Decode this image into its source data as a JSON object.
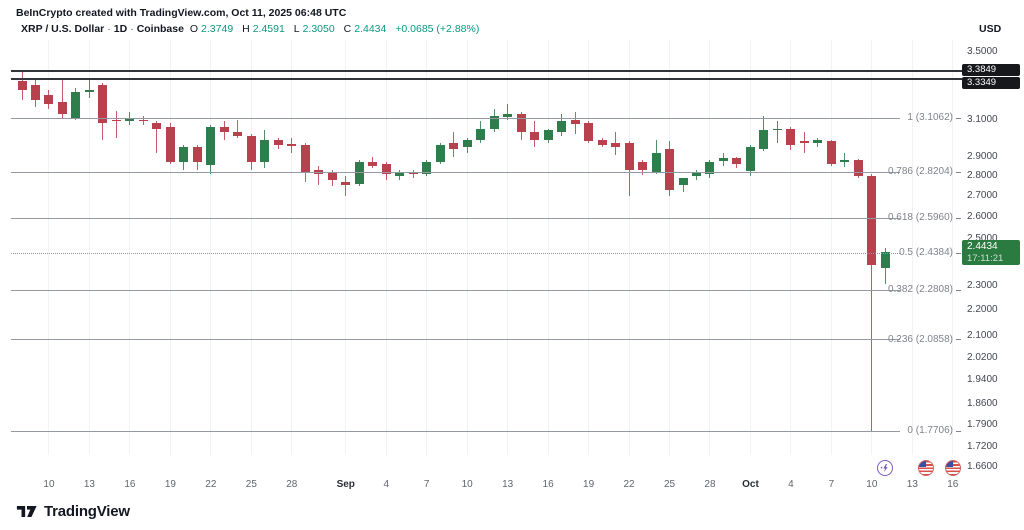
{
  "header": {
    "attribution": "BeInCrypto created with TradingView.com, Oct 11, 2025 06:48 UTC"
  },
  "legend": {
    "symbol": "XRP / U.S. Dollar",
    "separator": "·",
    "interval": "1D",
    "exchange": "Coinbase",
    "o_label": "O",
    "o_value": "2.3749",
    "h_label": "H",
    "h_value": "2.4591",
    "l_label": "L",
    "l_value": "2.3050",
    "c_label": "C",
    "c_value": "2.4434",
    "change": "+0.0685 (+2.88%)"
  },
  "axis": {
    "currency": "USD"
  },
  "branding": {
    "name": "TradingView"
  },
  "colors": {
    "up": "#2e7d4c",
    "down": "#b8414e",
    "ohlc_value_text": "#089981",
    "fib_line": "#9599a3",
    "fib_text": "#80838d",
    "black_line": "#33353c",
    "grid": "#f1f2f5",
    "axis_text": "#434651",
    "time_text": "#61646d",
    "time_text_bold": "#2a2d35",
    "label_box_dark": "#17181c",
    "label_box_green": "#2a7b3f",
    "event_purple": "#7d5bbe",
    "flag_red": "#d8504d",
    "flag_blue": "#3c4fa0",
    "text_dark": "#131722"
  },
  "chart_data": {
    "type": "candlestick",
    "symbol": "XRP / U.S. Dollar",
    "exchange": "Coinbase",
    "interval": "1D",
    "y_scale": "log",
    "ohlc_display": {
      "open": "2.3749",
      "high": "2.4591",
      "low": "2.3050",
      "close": "2.4434",
      "change": "+0.0685 (+2.88%)"
    },
    "price_ticks": [
      {
        "label": "3.5000",
        "value": 3.5
      },
      {
        "label": "3.3000",
        "value": 3.3
      },
      {
        "label": "3.1000",
        "value": 3.1
      },
      {
        "label": "2.9000",
        "value": 2.9
      },
      {
        "label": "2.8000",
        "value": 2.8
      },
      {
        "label": "2.7000",
        "value": 2.7
      },
      {
        "label": "2.6000",
        "value": 2.6
      },
      {
        "label": "2.5000",
        "value": 2.5
      },
      {
        "label": "2.3000",
        "value": 2.3
      },
      {
        "label": "2.2000",
        "value": 2.2
      },
      {
        "label": "2.1000",
        "value": 2.1
      },
      {
        "label": "2.0200",
        "value": 2.02
      },
      {
        "label": "1.9400",
        "value": 1.94
      },
      {
        "label": "1.8600",
        "value": 1.86
      },
      {
        "label": "1.7900",
        "value": 1.79
      },
      {
        "label": "1.7200",
        "value": 1.72
      },
      {
        "label": "1.6600",
        "value": 1.66
      }
    ],
    "time_ticks": [
      {
        "label": "10",
        "day": 2,
        "bold": false
      },
      {
        "label": "13",
        "day": 5,
        "bold": false
      },
      {
        "label": "16",
        "day": 8,
        "bold": false
      },
      {
        "label": "19",
        "day": 11,
        "bold": false
      },
      {
        "label": "22",
        "day": 14,
        "bold": false
      },
      {
        "label": "25",
        "day": 17,
        "bold": false
      },
      {
        "label": "28",
        "day": 20,
        "bold": false
      },
      {
        "label": "Sep",
        "day": 24,
        "bold": true
      },
      {
        "label": "4",
        "day": 27,
        "bold": false
      },
      {
        "label": "7",
        "day": 30,
        "bold": false
      },
      {
        "label": "10",
        "day": 33,
        "bold": false
      },
      {
        "label": "13",
        "day": 36,
        "bold": false
      },
      {
        "label": "16",
        "day": 39,
        "bold": false
      },
      {
        "label": "19",
        "day": 42,
        "bold": false
      },
      {
        "label": "22",
        "day": 45,
        "bold": false
      },
      {
        "label": "25",
        "day": 48,
        "bold": false
      },
      {
        "label": "28",
        "day": 51,
        "bold": false
      },
      {
        "label": "Oct",
        "day": 54,
        "bold": true
      },
      {
        "label": "4",
        "day": 57,
        "bold": false
      },
      {
        "label": "7",
        "day": 60,
        "bold": false
      },
      {
        "label": "10",
        "day": 63,
        "bold": false
      },
      {
        "label": "13",
        "day": 66,
        "bold": false
      },
      {
        "label": "16",
        "day": 69,
        "bold": false
      }
    ],
    "horizontal_lines": [
      {
        "price": 3.3849,
        "label": "3.3849"
      },
      {
        "price": 3.3349,
        "label": "3.3349"
      }
    ],
    "fib_levels": [
      {
        "ratio": "1",
        "price": 3.1062,
        "label": "1 (3.1062)",
        "dotted": false
      },
      {
        "ratio": "0.786",
        "price": 2.8204,
        "label": "0.786 (2.8204)",
        "dotted": false
      },
      {
        "ratio": "0.618",
        "price": 2.596,
        "label": "0.618 (2.5960)",
        "dotted": false
      },
      {
        "ratio": "0.5",
        "price": 2.4384,
        "label": "0.5 (2.4384)",
        "dotted": true
      },
      {
        "ratio": "0.382",
        "price": 2.2808,
        "label": "0.382 (2.2808)",
        "dotted": false
      },
      {
        "ratio": "0.236",
        "price": 2.0858,
        "label": "0.236 (2.0858)",
        "dotted": false
      },
      {
        "ratio": "0",
        "price": 1.7706,
        "label": "0 (1.7706)",
        "dotted": false
      }
    ],
    "last_price": {
      "value": "2.4434",
      "countdown": "17:11:21",
      "price": 2.4434
    },
    "event_markers": [
      {
        "type": "lightning",
        "name": "lightning-event-icon",
        "day": 64
      },
      {
        "type": "us-flag",
        "name": "us-flag-event-icon",
        "day": 67
      },
      {
        "type": "us-flag",
        "name": "us-flag-event-icon",
        "day": 69
      }
    ],
    "candles": [
      {
        "d": "Aug 8",
        "o": 3.32,
        "h": 3.38,
        "l": 3.21,
        "c": 3.27
      },
      {
        "d": "Aug 9",
        "o": 3.3,
        "h": 3.33,
        "l": 3.17,
        "c": 3.21
      },
      {
        "d": "Aug 10",
        "o": 3.24,
        "h": 3.27,
        "l": 3.16,
        "c": 3.19
      },
      {
        "d": "Aug 11",
        "o": 3.2,
        "h": 3.34,
        "l": 3.11,
        "c": 3.13
      },
      {
        "d": "Aug 12",
        "o": 3.11,
        "h": 3.28,
        "l": 3.1,
        "c": 3.26
      },
      {
        "d": "Aug 13",
        "o": 3.26,
        "h": 3.33,
        "l": 3.22,
        "c": 3.27
      },
      {
        "d": "Aug 14",
        "o": 3.3,
        "h": 3.31,
        "l": 2.99,
        "c": 3.08
      },
      {
        "d": "Aug 15",
        "o": 3.1,
        "h": 3.15,
        "l": 3.0,
        "c": 3.09
      },
      {
        "d": "Aug 16",
        "o": 3.09,
        "h": 3.14,
        "l": 3.07,
        "c": 3.11
      },
      {
        "d": "Aug 17",
        "o": 3.1,
        "h": 3.12,
        "l": 3.07,
        "c": 3.09
      },
      {
        "d": "Aug 18",
        "o": 3.08,
        "h": 3.09,
        "l": 2.92,
        "c": 3.05
      },
      {
        "d": "Aug 19",
        "o": 3.06,
        "h": 3.08,
        "l": 2.86,
        "c": 2.87
      },
      {
        "d": "Aug 20",
        "o": 2.87,
        "h": 2.96,
        "l": 2.83,
        "c": 2.95
      },
      {
        "d": "Aug 21",
        "o": 2.95,
        "h": 2.96,
        "l": 2.83,
        "c": 2.87
      },
      {
        "d": "Aug 22",
        "o": 2.855,
        "h": 3.07,
        "l": 2.81,
        "c": 3.06
      },
      {
        "d": "Aug 23",
        "o": 3.06,
        "h": 3.09,
        "l": 2.99,
        "c": 3.03
      },
      {
        "d": "Aug 24",
        "o": 3.03,
        "h": 3.1,
        "l": 3.0,
        "c": 3.01
      },
      {
        "d": "Aug 25",
        "o": 3.01,
        "h": 3.02,
        "l": 2.83,
        "c": 2.87
      },
      {
        "d": "Aug 26",
        "o": 2.87,
        "h": 3.04,
        "l": 2.84,
        "c": 2.99
      },
      {
        "d": "Aug 27",
        "o": 2.99,
        "h": 3.0,
        "l": 2.94,
        "c": 2.96
      },
      {
        "d": "Aug 28",
        "o": 2.965,
        "h": 3.0,
        "l": 2.92,
        "c": 2.955
      },
      {
        "d": "Aug 29",
        "o": 2.96,
        "h": 2.97,
        "l": 2.77,
        "c": 2.82
      },
      {
        "d": "Aug 30",
        "o": 2.83,
        "h": 2.85,
        "l": 2.755,
        "c": 2.81
      },
      {
        "d": "Aug 31",
        "o": 2.82,
        "h": 2.83,
        "l": 2.75,
        "c": 2.78
      },
      {
        "d": "Sep 1",
        "o": 2.77,
        "h": 2.8,
        "l": 2.7,
        "c": 2.755
      },
      {
        "d": "Sep 2",
        "o": 2.76,
        "h": 2.88,
        "l": 2.75,
        "c": 2.87
      },
      {
        "d": "Sep 3",
        "o": 2.87,
        "h": 2.9,
        "l": 2.84,
        "c": 2.85
      },
      {
        "d": "Sep 4",
        "o": 2.86,
        "h": 2.87,
        "l": 2.78,
        "c": 2.81
      },
      {
        "d": "Sep 5",
        "o": 2.8,
        "h": 2.83,
        "l": 2.78,
        "c": 2.82
      },
      {
        "d": "Sep 6",
        "o": 2.82,
        "h": 2.83,
        "l": 2.79,
        "c": 2.81
      },
      {
        "d": "Sep 7",
        "o": 2.81,
        "h": 2.88,
        "l": 2.8,
        "c": 2.87
      },
      {
        "d": "Sep 8",
        "o": 2.87,
        "h": 2.97,
        "l": 2.86,
        "c": 2.96
      },
      {
        "d": "Sep 9",
        "o": 2.97,
        "h": 3.03,
        "l": 2.9,
        "c": 2.94
      },
      {
        "d": "Sep 10",
        "o": 2.95,
        "h": 3.0,
        "l": 2.92,
        "c": 2.99
      },
      {
        "d": "Sep 11",
        "o": 2.99,
        "h": 3.09,
        "l": 2.97,
        "c": 3.05
      },
      {
        "d": "Sep 12",
        "o": 3.05,
        "h": 3.16,
        "l": 3.03,
        "c": 3.12
      },
      {
        "d": "Sep 13",
        "o": 3.115,
        "h": 3.19,
        "l": 3.1,
        "c": 3.13
      },
      {
        "d": "Sep 14",
        "o": 3.13,
        "h": 3.14,
        "l": 2.99,
        "c": 3.03
      },
      {
        "d": "Sep 15",
        "o": 3.03,
        "h": 3.09,
        "l": 2.95,
        "c": 2.99
      },
      {
        "d": "Sep 16",
        "o": 2.99,
        "h": 3.05,
        "l": 2.97,
        "c": 3.04
      },
      {
        "d": "Sep 17",
        "o": 3.03,
        "h": 3.13,
        "l": 3.01,
        "c": 3.09
      },
      {
        "d": "Sep 18",
        "o": 3.095,
        "h": 3.14,
        "l": 3.02,
        "c": 3.075
      },
      {
        "d": "Sep 19",
        "o": 3.08,
        "h": 3.09,
        "l": 2.97,
        "c": 2.985
      },
      {
        "d": "Sep 20",
        "o": 2.99,
        "h": 3.0,
        "l": 2.95,
        "c": 2.96
      },
      {
        "d": "Sep 21",
        "o": 2.97,
        "h": 3.03,
        "l": 2.91,
        "c": 2.95
      },
      {
        "d": "Sep 22",
        "o": 2.97,
        "h": 2.98,
        "l": 2.7,
        "c": 2.83
      },
      {
        "d": "Sep 23",
        "o": 2.87,
        "h": 2.88,
        "l": 2.805,
        "c": 2.83
      },
      {
        "d": "Sep 24",
        "o": 2.82,
        "h": 2.99,
        "l": 2.81,
        "c": 2.92
      },
      {
        "d": "Sep 25",
        "o": 2.94,
        "h": 2.98,
        "l": 2.7,
        "c": 2.73
      },
      {
        "d": "Sep 26",
        "o": 2.755,
        "h": 2.79,
        "l": 2.72,
        "c": 2.79
      },
      {
        "d": "Sep 27",
        "o": 2.8,
        "h": 2.83,
        "l": 2.78,
        "c": 2.82
      },
      {
        "d": "Sep 28",
        "o": 2.81,
        "h": 2.88,
        "l": 2.79,
        "c": 2.87
      },
      {
        "d": "Sep 29",
        "o": 2.875,
        "h": 2.92,
        "l": 2.85,
        "c": 2.895
      },
      {
        "d": "Sep 30",
        "o": 2.895,
        "h": 2.9,
        "l": 2.84,
        "c": 2.86
      },
      {
        "d": "Oct 1",
        "o": 2.825,
        "h": 2.96,
        "l": 2.8,
        "c": 2.95
      },
      {
        "d": "Oct 2",
        "o": 2.94,
        "h": 3.12,
        "l": 2.93,
        "c": 3.04
      },
      {
        "d": "Oct 3",
        "o": 3.04,
        "h": 3.09,
        "l": 2.97,
        "c": 3.05
      },
      {
        "d": "Oct 4",
        "o": 3.05,
        "h": 3.06,
        "l": 2.935,
        "c": 2.96
      },
      {
        "d": "Oct 5",
        "o": 2.985,
        "h": 3.03,
        "l": 2.92,
        "c": 2.97
      },
      {
        "d": "Oct 6",
        "o": 2.97,
        "h": 3.0,
        "l": 2.95,
        "c": 2.99
      },
      {
        "d": "Oct 7",
        "o": 2.985,
        "h": 2.99,
        "l": 2.85,
        "c": 2.86
      },
      {
        "d": "Oct 8",
        "o": 2.87,
        "h": 2.92,
        "l": 2.845,
        "c": 2.885
      },
      {
        "d": "Oct 9",
        "o": 2.88,
        "h": 2.89,
        "l": 2.79,
        "c": 2.8
      },
      {
        "d": "Oct 10",
        "o": 2.8,
        "h": 2.81,
        "l": 1.7706,
        "c": 2.387
      },
      {
        "d": "Oct 11",
        "o": 2.3749,
        "h": 2.4591,
        "l": 2.305,
        "c": 2.4434
      }
    ]
  }
}
